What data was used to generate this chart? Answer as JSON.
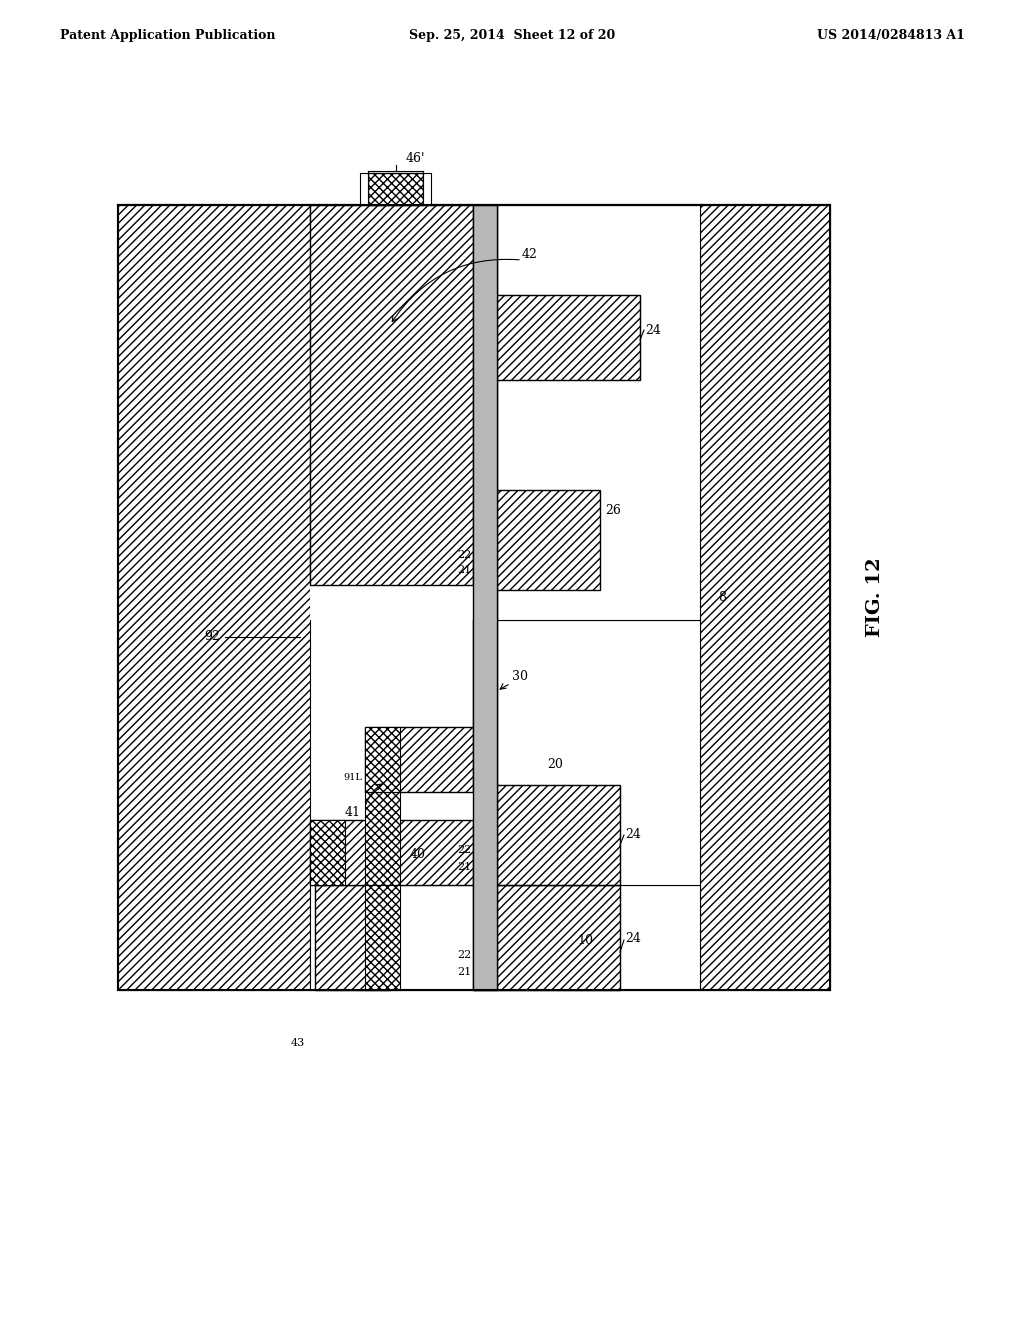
{
  "title_left": "Patent Application Publication",
  "title_mid": "Sep. 25, 2014  Sheet 12 of 20",
  "title_right": "US 2014/0284813 A1",
  "fig_label": "FIG. 12",
  "bg_color": "#ffffff"
}
